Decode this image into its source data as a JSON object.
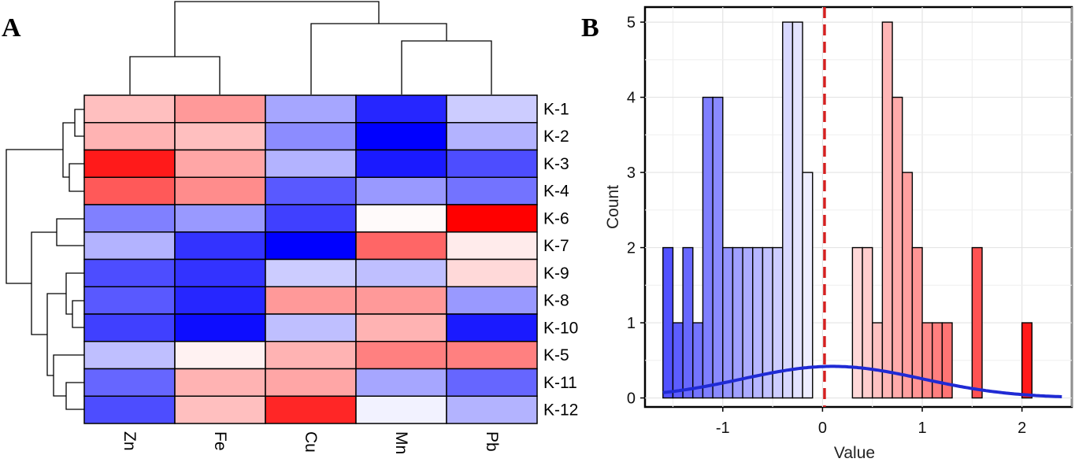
{
  "panels": {
    "a_label": "A",
    "b_label": "B"
  },
  "chart_data": [
    {
      "type": "heatmap",
      "title": "",
      "columns": [
        "Zn",
        "Fe",
        "Cu",
        "Mn",
        "Pb"
      ],
      "rows": [
        "K-1",
        "K-2",
        "K-3",
        "K-4",
        "K-6",
        "K-7",
        "K-9",
        "K-8",
        "K-10",
        "K-5",
        "K-11",
        "K-12"
      ],
      "values": [
        [
          0.25,
          0.4,
          -0.35,
          -0.85,
          -0.2
        ],
        [
          0.3,
          0.25,
          -0.45,
          -1.0,
          -0.3
        ],
        [
          0.9,
          0.35,
          -0.3,
          -0.9,
          -0.7
        ],
        [
          0.65,
          0.45,
          -0.65,
          -0.4,
          -0.55
        ],
        [
          -0.5,
          -0.4,
          -0.75,
          0.02,
          1.0
        ],
        [
          -0.3,
          -0.8,
          -1.0,
          0.6,
          0.08
        ],
        [
          -0.7,
          -0.8,
          -0.2,
          -0.25,
          0.15
        ],
        [
          -0.65,
          -0.85,
          0.4,
          0.4,
          -0.4
        ],
        [
          -0.75,
          -0.95,
          -0.25,
          0.3,
          -0.9
        ],
        [
          -0.25,
          0.05,
          0.3,
          0.5,
          0.5
        ],
        [
          -0.6,
          0.3,
          0.35,
          -0.35,
          -0.6
        ],
        [
          -0.7,
          0.25,
          0.85,
          -0.05,
          -0.3
        ]
      ],
      "color_scale": {
        "low": "#0000ff",
        "mid": "#ffffff",
        "high": "#ff0000"
      }
    },
    {
      "type": "bar",
      "title": "",
      "xlabel": "Value",
      "ylabel": "Count",
      "xlim": [
        -1.78,
        2.5
      ],
      "ylim": [
        -0.12,
        5.2
      ],
      "xticks": [
        -1,
        0,
        1,
        2
      ],
      "yticks": [
        0,
        1,
        2,
        3,
        4,
        5
      ],
      "bin_width": 0.1,
      "bins": [
        {
          "x0": -1.6,
          "count": 2
        },
        {
          "x0": -1.5,
          "count": 1
        },
        {
          "x0": -1.4,
          "count": 2
        },
        {
          "x0": -1.3,
          "count": 1
        },
        {
          "x0": -1.2,
          "count": 4
        },
        {
          "x0": -1.1,
          "count": 4
        },
        {
          "x0": -1.0,
          "count": 2
        },
        {
          "x0": -0.9,
          "count": 2
        },
        {
          "x0": -0.8,
          "count": 2
        },
        {
          "x0": -0.7,
          "count": 2
        },
        {
          "x0": -0.6,
          "count": 2
        },
        {
          "x0": -0.5,
          "count": 2
        },
        {
          "x0": -0.4,
          "count": 5
        },
        {
          "x0": -0.3,
          "count": 5
        },
        {
          "x0": -0.2,
          "count": 3
        },
        {
          "x0": 0.3,
          "count": 2
        },
        {
          "x0": 0.4,
          "count": 2
        },
        {
          "x0": 0.5,
          "count": 1
        },
        {
          "x0": 0.6,
          "count": 5
        },
        {
          "x0": 0.7,
          "count": 4
        },
        {
          "x0": 0.8,
          "count": 3
        },
        {
          "x0": 0.9,
          "count": 2
        },
        {
          "x0": 1.0,
          "count": 1
        },
        {
          "x0": 1.1,
          "count": 1
        },
        {
          "x0": 1.2,
          "count": 1
        },
        {
          "x0": 1.5,
          "count": 2
        },
        {
          "x0": 2.0,
          "count": 1
        }
      ],
      "density_curve": {
        "mean": 0.1,
        "sd": 0.9,
        "peak": 0.42,
        "color": "#1f2ad4"
      },
      "vline": {
        "x": 0.02,
        "color": "#d42020"
      },
      "color_scale": {
        "low": "#0000ff",
        "mid": "#ffffff",
        "high": "#ff0000"
      }
    }
  ]
}
